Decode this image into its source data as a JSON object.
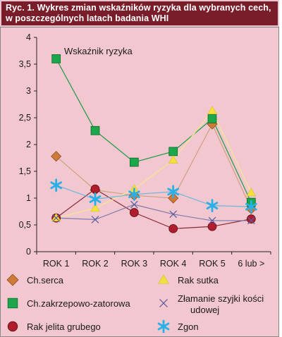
{
  "caption": "Ryc. 1. Wykres zmian wskaźników ryzyka dla wybranych cech, w poszczególnych latach badania WHI",
  "chart_data": {
    "type": "line",
    "annotation": "Wskaźnik ryzyka",
    "categories": [
      "ROK 1",
      "ROK 2",
      "ROK 3",
      "ROK 4",
      "ROK 5",
      "6 lub >"
    ],
    "ylim": [
      0,
      4
    ],
    "yticks": [
      "0",
      "0,5",
      "1",
      "1,5",
      "2",
      "2,5",
      "3",
      "3,5",
      "4"
    ],
    "grid": false,
    "legend_position": "bottom",
    "series": [
      {
        "name": "Ch.serca",
        "values": [
          1.78,
          1.15,
          1.05,
          1.0,
          2.38,
          0.8
        ],
        "color": "#d07a3a",
        "line": "#d0a080",
        "marker": "diamond"
      },
      {
        "name": "Ch.zakrzepowo-zatorowa",
        "values": [
          3.6,
          2.26,
          1.67,
          1.87,
          2.48,
          0.92
        ],
        "color": "#1aa84a",
        "line": "#1a9a4a",
        "marker": "square"
      },
      {
        "name": "Rak jelita grubego",
        "values": [
          0.63,
          1.17,
          0.73,
          0.43,
          0.47,
          0.61
        ],
        "color": "#b01e2e",
        "line": "#8a2a3a",
        "marker": "circle"
      },
      {
        "name": "Rak sutka",
        "values": [
          0.63,
          0.81,
          1.17,
          1.71,
          2.63,
          1.1
        ],
        "color": "#f2e040",
        "line": "#f2e890",
        "marker": "triangle"
      },
      {
        "name": "Złamanie szyjki kości udowej",
        "values": [
          0.63,
          0.6,
          0.88,
          0.7,
          0.58,
          0.58
        ],
        "color": "#5a5aa0",
        "line": "#7a7ab0",
        "marker": "x"
      },
      {
        "name": "Zgon",
        "values": [
          1.24,
          0.98,
          1.07,
          1.12,
          0.86,
          0.84
        ],
        "color": "#28b0e8",
        "line": "#6ab8d8",
        "marker": "star"
      }
    ]
  }
}
